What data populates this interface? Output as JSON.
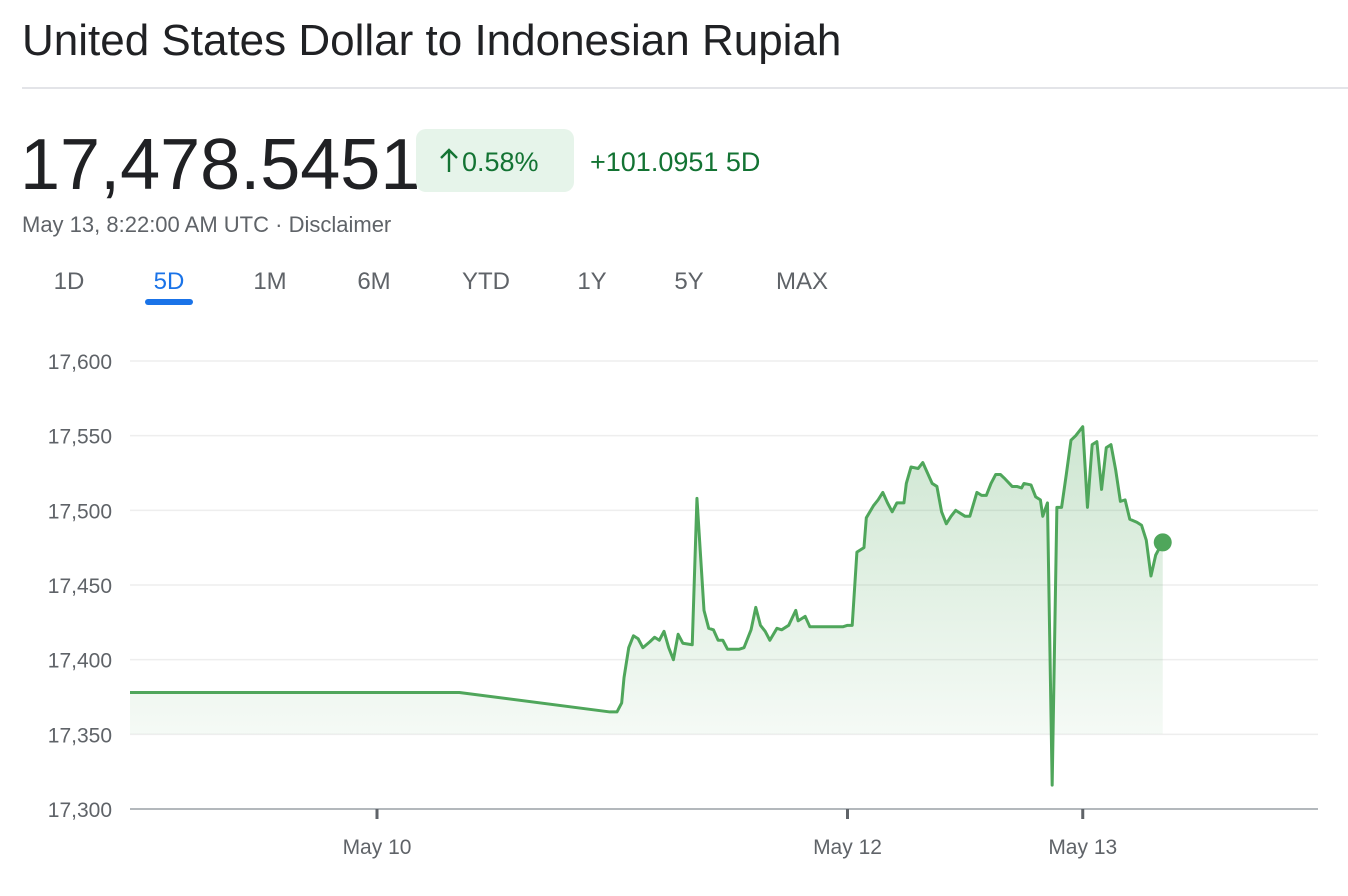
{
  "header": {
    "title": "United States Dollar to Indonesian Rupiah",
    "price": "17,478.5451",
    "change_percent": "0.58%",
    "change_value": "+101.0951 5D",
    "timestamp": "May 13, 8:22:00 AM UTC",
    "separator": "·",
    "disclaimer": "Disclaimer"
  },
  "tabs": {
    "items": [
      "1D",
      "5D",
      "1M",
      "6M",
      "YTD",
      "1Y",
      "5Y",
      "MAX"
    ],
    "active": "5D"
  },
  "chart_data": {
    "type": "line",
    "color": "#4fa65b",
    "grid": true,
    "x": [
      8.95,
      10.35,
      10.99,
      11.02,
      11.04,
      11.05,
      11.07,
      11.09,
      11.11,
      11.13,
      11.16,
      11.18,
      11.2,
      11.22,
      11.24,
      11.26,
      11.28,
      11.3,
      11.34,
      11.36,
      11.39,
      11.41,
      11.43,
      11.45,
      11.47,
      11.49,
      11.54,
      11.56,
      11.59,
      11.61,
      11.63,
      11.65,
      11.67,
      11.7,
      11.72,
      11.75,
      11.78,
      11.79,
      11.82,
      11.84,
      11.98,
      12,
      12.02,
      12.04,
      12.07,
      12.08,
      12.11,
      12.13,
      12.15,
      12.17,
      12.19,
      12.21,
      12.24,
      12.25,
      12.27,
      12.3,
      12.32,
      12.34,
      12.36,
      12.38,
      12.4,
      12.42,
      12.44,
      12.46,
      12.5,
      12.52,
      12.55,
      12.57,
      12.59,
      12.61,
      12.63,
      12.65,
      12.67,
      12.7,
      12.72,
      12.74,
      12.75,
      12.78,
      12.8,
      12.82,
      12.83,
      12.85,
      12.87,
      12.89,
      12.91,
      12.93,
      12.95,
      12.97,
      13,
      13.02,
      13.04,
      13.06,
      13.08,
      13.1,
      13.12,
      13.14,
      13.16,
      13.18,
      13.2,
      13.23,
      13.25,
      13.27,
      13.29,
      13.31,
      13.33,
      13.34
    ],
    "values": [
      17378,
      17378,
      17365,
      17365,
      17371,
      17388,
      17408,
      17416,
      17414,
      17408,
      17412,
      17415,
      17413,
      17419,
      17408,
      17400,
      17417,
      17411,
      17410,
      17508,
      17433,
      17421,
      17420,
      17413,
      17413,
      17407,
      17407,
      17408,
      17420,
      17435,
      17423,
      17419,
      17413,
      17421,
      17420,
      17423,
      17433,
      17426,
      17429,
      17422,
      17422,
      17423,
      17423,
      17472,
      17475,
      17495,
      17503,
      17507,
      17512,
      17505,
      17499,
      17505,
      17505,
      17518,
      17529,
      17528,
      17532,
      17525,
      17518,
      17516,
      17499,
      17491,
      17496,
      17500,
      17496,
      17496,
      17512,
      17510,
      17510,
      17518,
      17524,
      17524,
      17521,
      17516,
      17516,
      17515,
      17518,
      17517,
      17509,
      17507,
      17496,
      17505,
      17316,
      17502,
      17502,
      17524,
      17547,
      17550,
      17556,
      17502,
      17544,
      17546,
      17514,
      17542,
      17544,
      17527,
      17506,
      17507,
      17494,
      17492,
      17490,
      17480,
      17456,
      17470,
      17476,
      17478.5451
    ],
    "xlim": [
      8.95,
      14
    ],
    "xticks": [
      {
        "value": 10,
        "label": "May 10"
      },
      {
        "value": 12,
        "label": "May 12"
      },
      {
        "value": 13,
        "label": "May 13"
      }
    ],
    "ylim": [
      17300,
      17600
    ],
    "yticks": [
      {
        "value": 17300,
        "label": "17,300"
      },
      {
        "value": 17350,
        "label": "17,350"
      },
      {
        "value": 17400,
        "label": "17,400"
      },
      {
        "value": 17450,
        "label": "17,450"
      },
      {
        "value": 17500,
        "label": "17,500"
      },
      {
        "value": 17550,
        "label": "17,550"
      },
      {
        "value": 17600,
        "label": "17,600"
      }
    ]
  }
}
